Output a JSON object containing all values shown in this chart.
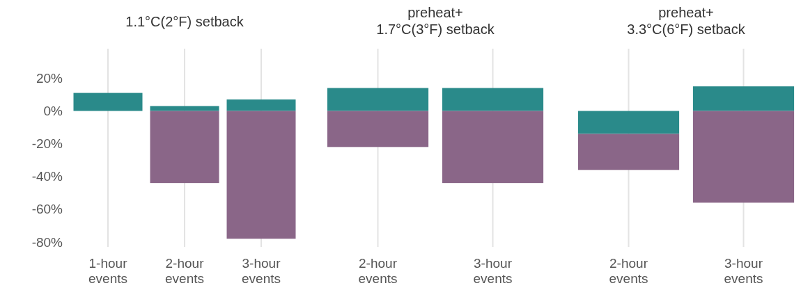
{
  "chart_data": [
    {
      "type": "bar",
      "title": "1.1°C(2°F) setback",
      "categories": [
        "1-hour\nevents",
        "2-hour\nevents",
        "3-hour\nevents"
      ],
      "stacked": true,
      "series": [
        {
          "color": "#2a8a8a",
          "values": [
            11,
            3,
            7
          ]
        },
        {
          "color": "#8a6688",
          "values": [
            null,
            -44,
            -78
          ]
        }
      ],
      "ylim": [
        -83,
        38
      ],
      "yticks": [
        {
          "value": 20,
          "label": "20%"
        },
        {
          "value": 0,
          "label": "0%"
        },
        {
          "value": -20,
          "label": "-20%"
        },
        {
          "value": -40,
          "label": "-40%"
        },
        {
          "value": -60,
          "label": "-60%"
        },
        {
          "value": -80,
          "label": "-80%"
        }
      ],
      "grid": "x"
    },
    {
      "type": "bar",
      "title": "preheat+\n1.7°C(3°F) setback",
      "categories": [
        "2-hour\nevents",
        "3-hour\nevents"
      ],
      "stacked": true,
      "series": [
        {
          "color": "#2a8a8a",
          "values": [
            14,
            14
          ]
        },
        {
          "color": "#8a6688",
          "values": [
            -22,
            -44
          ]
        }
      ],
      "ylim": [
        -83,
        38
      ],
      "tick_labels": "x",
      "grid": "x"
    },
    {
      "type": "bar",
      "title": "preheat+\n3.3°C(6°F) setback",
      "categories": [
        "2-hour\nevents",
        "3-hour\nevents"
      ],
      "stacked": true,
      "series": [
        {
          "color": "#2a8a8a",
          "values": [
            -14,
            15
          ]
        },
        {
          "color": "#8a6688",
          "values": [
            -22,
            -56
          ]
        }
      ],
      "ylim": [
        -83,
        38
      ],
      "tick_labels": "x",
      "grid": "x"
    }
  ]
}
